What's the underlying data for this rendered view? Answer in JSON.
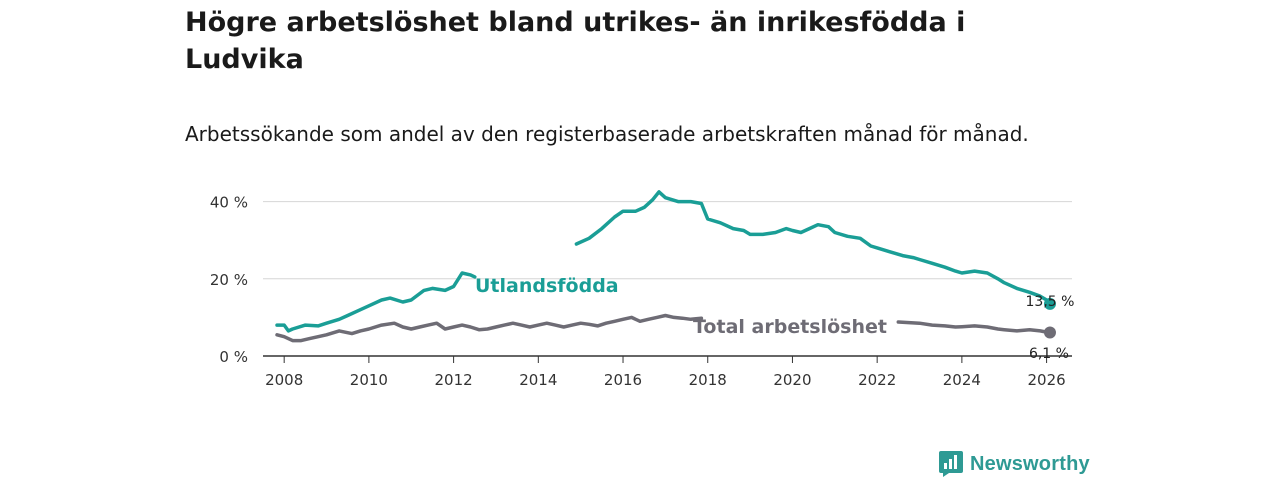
{
  "title": "Högre arbetslöshet bland utrikes- än inrikesfödda i Ludvika",
  "subtitle": "Arbetssökande som andel av den registerbaserade arbetskraften månad för månad.",
  "brand": {
    "name": "Newsworthy",
    "icon": "newsworthy-logo-icon",
    "color": "#2e9a94"
  },
  "chart_data": {
    "type": "line",
    "title": "Högre arbetslöshet bland utrikes- än inrikesfödda i Ludvika",
    "xlabel": "",
    "ylabel": "",
    "xlim": [
      2007.5,
      2026.6
    ],
    "ylim": [
      0,
      43
    ],
    "grid": true,
    "x_ticks": [
      2008,
      2010,
      2012,
      2014,
      2016,
      2018,
      2020,
      2022,
      2024,
      2026
    ],
    "x_tick_labels": [
      "2008",
      "2010",
      "2012",
      "2014",
      "2016",
      "2018",
      "2020",
      "2022",
      "2024",
      "2026"
    ],
    "y_ticks": [
      0,
      20,
      40
    ],
    "y_tick_labels": [
      "0 %",
      "20 %",
      "40 %"
    ],
    "series": [
      {
        "name": "Utlandsfödda",
        "color": "#1a9e96",
        "x": [
          2007.83,
          2008.0,
          2008.1,
          2008.2,
          2008.5,
          2008.8,
          2009.0,
          2009.3,
          2009.5,
          2009.8,
          2010.0,
          2010.3,
          2010.5,
          2010.8,
          2011.0,
          2011.3,
          2011.5,
          2011.8,
          2012.0,
          2012.2,
          2012.4,
          2012.5,
          2014.9,
          2015.2,
          2015.5,
          2015.8,
          2016.0,
          2016.3,
          2016.5,
          2016.7,
          2016.85,
          2017.0,
          2017.3,
          2017.6,
          2017.85,
          2018.0,
          2018.3,
          2018.6,
          2018.85,
          2019.0,
          2019.3,
          2019.6,
          2019.85,
          2020.0,
          2020.2,
          2020.4,
          2020.6,
          2020.85,
          2021.0,
          2021.3,
          2021.6,
          2021.85,
          2022.0,
          2022.3,
          2022.6,
          2022.85,
          2023.0,
          2023.3,
          2023.6,
          2023.85,
          2024.0,
          2024.3,
          2024.6,
          2024.85,
          2025.0,
          2025.3,
          2025.6,
          2025.85,
          2026.0,
          2026.08
        ],
        "values": [
          8.0,
          8.0,
          6.5,
          7.0,
          8.0,
          7.8,
          8.5,
          9.5,
          10.5,
          12.0,
          13.0,
          14.5,
          15.0,
          14.0,
          14.5,
          17.0,
          17.5,
          17.0,
          18.0,
          21.5,
          21.0,
          20.5,
          29.0,
          30.5,
          33.0,
          36.0,
          37.5,
          37.5,
          38.5,
          40.5,
          42.5,
          41.0,
          40.0,
          40.0,
          39.5,
          35.5,
          34.5,
          33.0,
          32.5,
          31.5,
          31.5,
          32.0,
          33.0,
          32.5,
          32.0,
          33.0,
          34.0,
          33.5,
          32.0,
          31.0,
          30.5,
          28.5,
          28.0,
          27.0,
          26.0,
          25.5,
          25.0,
          24.0,
          23.0,
          22.0,
          21.5,
          22.0,
          21.5,
          20.0,
          19.0,
          17.5,
          16.5,
          15.5,
          14.5,
          13.5
        ]
      },
      {
        "name": "Total arbetslöshet",
        "color": "#6e6c75",
        "x": [
          2007.83,
          2008.0,
          2008.2,
          2008.4,
          2008.6,
          2008.8,
          2009.0,
          2009.3,
          2009.6,
          2009.8,
          2010.0,
          2010.3,
          2010.6,
          2010.8,
          2011.0,
          2011.2,
          2011.4,
          2011.6,
          2011.8,
          2012.0,
          2012.2,
          2012.4,
          2012.6,
          2012.8,
          2013.0,
          2013.2,
          2013.4,
          2013.6,
          2013.8,
          2014.0,
          2014.2,
          2014.4,
          2014.6,
          2014.8,
          2015.0,
          2015.2,
          2015.4,
          2015.6,
          2015.8,
          2016.0,
          2016.2,
          2016.4,
          2016.6,
          2016.8,
          2017.0,
          2017.2,
          2017.4,
          2017.6,
          2017.85,
          2022.5,
          2022.8,
          2023.0,
          2023.3,
          2023.6,
          2023.85,
          2024.0,
          2024.3,
          2024.6,
          2024.85,
          2025.0,
          2025.3,
          2025.6,
          2025.85,
          2026.0,
          2026.08
        ],
        "values": [
          5.5,
          5.0,
          4.0,
          4.0,
          4.5,
          5.0,
          5.5,
          6.5,
          5.8,
          6.5,
          7.0,
          8.0,
          8.5,
          7.5,
          7.0,
          7.5,
          8.0,
          8.5,
          7.0,
          7.5,
          8.0,
          7.5,
          6.8,
          7.0,
          7.5,
          8.0,
          8.5,
          8.0,
          7.5,
          8.0,
          8.5,
          8.0,
          7.5,
          8.0,
          8.5,
          8.2,
          7.8,
          8.5,
          9.0,
          9.5,
          10.0,
          9.0,
          9.5,
          10.0,
          10.5,
          10.0,
          9.8,
          9.5,
          9.8,
          8.8,
          8.6,
          8.5,
          8.0,
          7.8,
          7.5,
          7.6,
          7.8,
          7.5,
          7.0,
          6.8,
          6.5,
          6.8,
          6.5,
          6.2,
          6.1
        ]
      }
    ],
    "annotations": [
      {
        "text": "Utlandsfödda",
        "series": 0
      },
      {
        "text": "Total arbetslöshet",
        "series": 1
      },
      {
        "text": "13,5 %",
        "series": 0,
        "kind": "end-value"
      },
      {
        "text": "6,1 %",
        "series": 1,
        "kind": "end-value"
      }
    ]
  }
}
